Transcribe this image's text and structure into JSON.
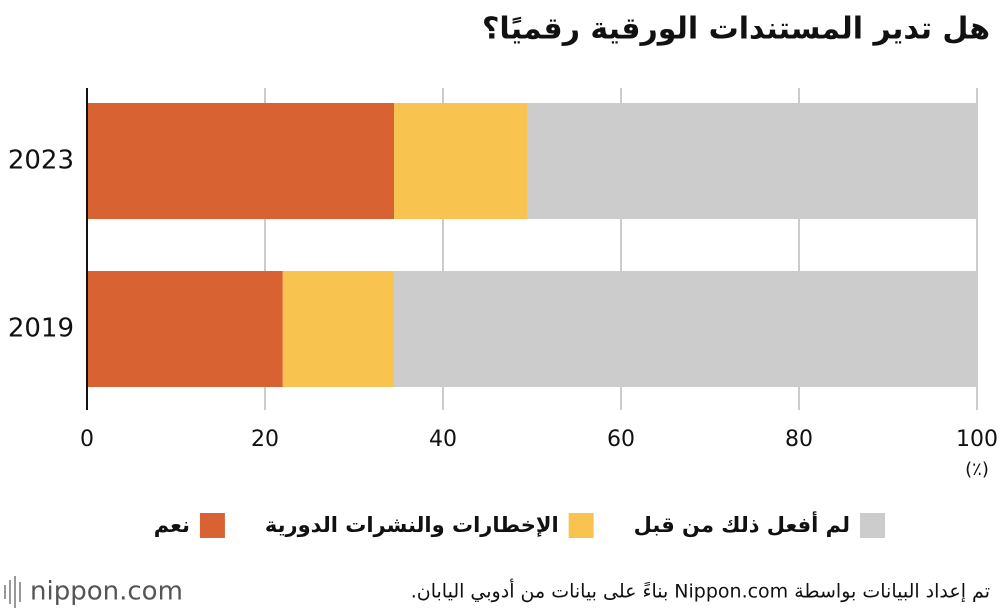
{
  "chart_data": {
    "type": "stacked-barh",
    "title": "هل تدير المستندات الورقية رقميًا؟",
    "categories": [
      "2023",
      "2019"
    ],
    "series": [
      {
        "name": "نعم",
        "color": "#d96233",
        "values": [
          34.5,
          22
        ]
      },
      {
        "name": "الإخطارات والنشرات الدورية",
        "color": "#f8c44f",
        "values": [
          15,
          12.5
        ]
      },
      {
        "name": "لم أفعل ذلك من قبل",
        "color": "#cccccc",
        "values": [
          50.5,
          65.5
        ]
      }
    ],
    "xlim": [
      0,
      100
    ],
    "xticks": [
      0,
      20,
      40,
      60,
      80,
      100
    ],
    "x_unit": "(٪)",
    "grid": true,
    "legend": "bottom",
    "source": "تم إعداد البيانات بواسطة Nippon.com بناءً على بيانات من أدوبي اليابان.",
    "logo": "nippon.com"
  }
}
